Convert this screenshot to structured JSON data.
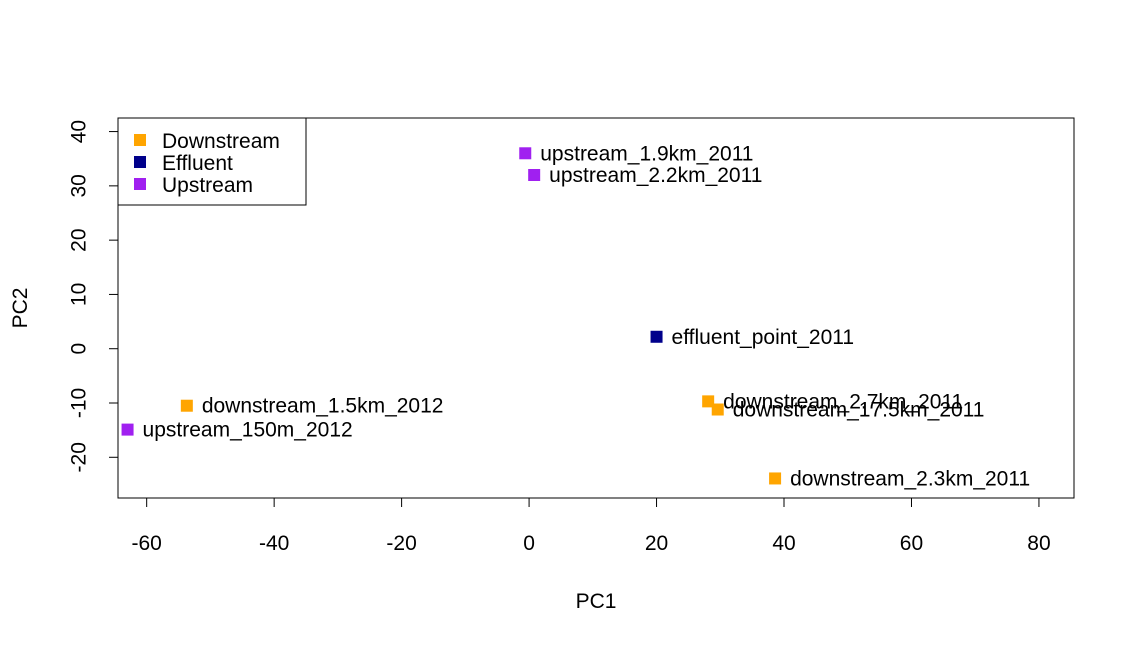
{
  "chart_data": {
    "type": "scatter",
    "xlabel": "PC1",
    "ylabel": "PC2",
    "xlim": [
      -64.5,
      85.5
    ],
    "ylim": [
      -27.5,
      42.5
    ],
    "xticks": [
      -60,
      -40,
      -20,
      0,
      20,
      40,
      60,
      80
    ],
    "yticks": [
      -20,
      -10,
      0,
      10,
      20,
      30,
      40
    ],
    "grid": false,
    "legend": {
      "position": "top-left",
      "entries": [
        {
          "name": "Downstream",
          "color": "#FFA500"
        },
        {
          "name": "Effluent",
          "color": "#00008B"
        },
        {
          "name": "Upstream",
          "color": "#A020F0"
        }
      ]
    },
    "points": [
      {
        "label": "upstream_1.9km_2011",
        "group": "Upstream",
        "x": -0.6,
        "y": 36.0
      },
      {
        "label": "upstream_2.2km_2011",
        "group": "Upstream",
        "x": 0.8,
        "y": 32.0
      },
      {
        "label": "effluent_point_2011",
        "group": "Effluent",
        "x": 20.0,
        "y": 2.2
      },
      {
        "label": "downstream_2.7km_2011",
        "group": "Downstream",
        "x": 28.1,
        "y": -9.7
      },
      {
        "label": "downstream_17.5km_2011",
        "group": "Downstream",
        "x": 29.6,
        "y": -11.2
      },
      {
        "label": "downstream_1.5km_2012",
        "group": "Downstream",
        "x": -53.7,
        "y": -10.5
      },
      {
        "label": "upstream_150m_2012",
        "group": "Upstream",
        "x": -63.0,
        "y": -14.9
      },
      {
        "label": "downstream_2.3km_2011",
        "group": "Downstream",
        "x": 38.6,
        "y": -23.9
      }
    ]
  }
}
